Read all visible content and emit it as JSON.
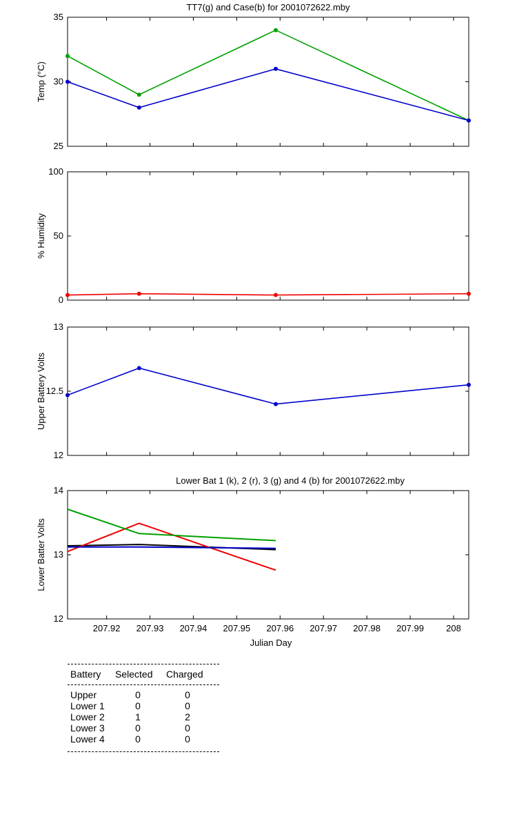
{
  "chart_data": [
    {
      "type": "line",
      "title": "TT7(g) and Case(b) for 2001072622.mby",
      "xlabel": "",
      "ylabel": "Temp  (°C)",
      "ylim": [
        25,
        35
      ],
      "yticks": [
        "25",
        "30",
        "35"
      ],
      "x": [
        207.911,
        207.9275,
        207.959,
        208.0035
      ],
      "series": [
        {
          "color": "#00a000",
          "marker": true,
          "values": [
            32,
            29,
            34,
            27
          ]
        },
        {
          "color": "#0000cc",
          "marker": true,
          "values": [
            30,
            28,
            31,
            27
          ]
        }
      ]
    },
    {
      "type": "line",
      "title": "",
      "xlabel": "",
      "ylabel": "% Humidity",
      "ylim": [
        0,
        100
      ],
      "yticks": [
        "0",
        "50",
        "100"
      ],
      "x": [
        207.911,
        207.9275,
        207.959,
        208.0035
      ],
      "series": [
        {
          "color": "#ee0000",
          "marker": true,
          "values": [
            4,
            5,
            4,
            5
          ]
        }
      ]
    },
    {
      "type": "line",
      "title": "",
      "xlabel": "",
      "ylabel": "Upper Battery Volts",
      "ylim": [
        12,
        13
      ],
      "yticks": [
        "12",
        "12.5",
        "13"
      ],
      "x": [
        207.911,
        207.9275,
        207.959,
        208.0035
      ],
      "series": [
        {
          "color": "#0000cc",
          "marker": true,
          "values": [
            12.47,
            12.68,
            12.4,
            12.55
          ]
        }
      ]
    },
    {
      "type": "line",
      "title": "Lower Bat 1 (k), 2 (r), 3 (g) and 4 (b) for 2001072622.mby",
      "xlabel": "Julian Day",
      "ylabel": "Lower Batter Volts",
      "ylim": [
        12,
        14
      ],
      "yticks": [
        "12",
        "13",
        "14"
      ],
      "xticks": [
        "207.92",
        "207.93",
        "207.94",
        "207.95",
        "207.96",
        "207.97",
        "207.98",
        "207.99",
        "208"
      ],
      "x": [
        207.911,
        207.9275,
        207.959
      ],
      "series": [
        {
          "color": "#000000",
          "marker": false,
          "values": [
            13.14,
            13.16,
            13.08
          ]
        },
        {
          "color": "#ee0000",
          "marker": false,
          "values": [
            13.05,
            13.49,
            12.76
          ]
        },
        {
          "color": "#00a000",
          "marker": false,
          "values": [
            13.71,
            13.33,
            13.22
          ]
        },
        {
          "color": "#0000cc",
          "marker": false,
          "values": [
            13.12,
            13.12,
            13.1
          ]
        }
      ]
    }
  ],
  "battery_table": {
    "headers": [
      "Battery",
      "Selected",
      "Charged"
    ],
    "rows": [
      [
        "Upper",
        "0",
        "0"
      ],
      [
        "Lower 1",
        "0",
        "0"
      ],
      [
        "Lower 2",
        "1",
        "2"
      ],
      [
        "Lower 3",
        "0",
        "0"
      ],
      [
        "Lower 4",
        "0",
        "0"
      ]
    ]
  }
}
